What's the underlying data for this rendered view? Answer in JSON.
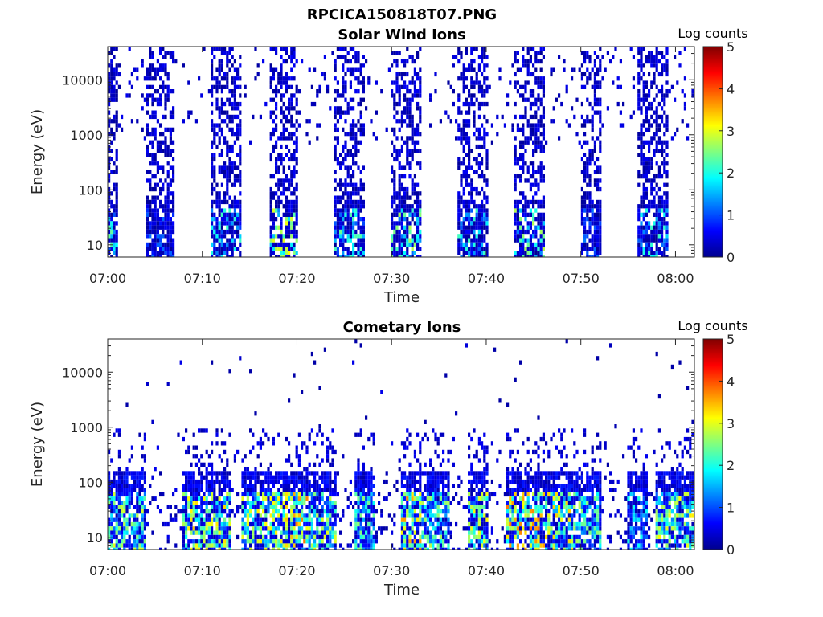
{
  "figure": {
    "title": "RPCICA150818T07.PNG"
  },
  "chart_data": [
    {
      "type": "heatmap",
      "title": "Solar Wind Ions",
      "xlabel": "Time",
      "ylabel": "Energy (eV)",
      "xlim": [
        "07:00",
        "08:02"
      ],
      "x_ticks": [
        "07:00",
        "07:10",
        "07:20",
        "07:30",
        "07:40",
        "07:50",
        "08:00"
      ],
      "y_scale": "log",
      "ylim": [
        6,
        40000
      ],
      "y_ticks": [
        "10",
        "100",
        "1000",
        "10000"
      ],
      "y_tick_values": [
        10,
        100,
        1000,
        10000
      ],
      "colorbar": {
        "label": "Log counts",
        "range": [
          0,
          5
        ],
        "ticks": [
          "0",
          "1",
          "2",
          "3",
          "4",
          "5"
        ],
        "colormap": "jet"
      },
      "bursts": [
        {
          "start": "07:00",
          "end": "07:01",
          "max_log": 2.4
        },
        {
          "start": "07:04",
          "end": "07:07",
          "max_log": 1.2
        },
        {
          "start": "07:11",
          "end": "07:14",
          "max_log": 2.2
        },
        {
          "start": "07:17",
          "end": "07:20",
          "max_log": 3.2
        },
        {
          "start": "07:24",
          "end": "07:27",
          "max_log": 2.4
        },
        {
          "start": "07:30",
          "end": "07:33",
          "max_log": 2.8
        },
        {
          "start": "07:37",
          "end": "07:40",
          "max_log": 2.2
        },
        {
          "start": "07:43",
          "end": "07:46",
          "max_log": 2.8
        },
        {
          "start": "07:50",
          "end": "07:52",
          "max_log": 1.3
        },
        {
          "start": "07:56",
          "end": "07:59",
          "max_log": 2.2
        }
      ]
    },
    {
      "type": "heatmap",
      "title": "Cometary Ions",
      "xlabel": "Time",
      "ylabel": "Energy (eV)",
      "xlim": [
        "07:00",
        "08:02"
      ],
      "x_ticks": [
        "07:00",
        "07:10",
        "07:20",
        "07:30",
        "07:40",
        "07:50",
        "08:00"
      ],
      "y_scale": "log",
      "ylim": [
        6,
        40000
      ],
      "y_ticks": [
        "10",
        "100",
        "1000",
        "10000"
      ],
      "y_tick_values": [
        10,
        100,
        1000,
        10000
      ],
      "colorbar": {
        "label": "Log counts",
        "range": [
          0,
          5
        ],
        "ticks": [
          "0",
          "1",
          "2",
          "3",
          "4",
          "5"
        ],
        "colormap": "jet"
      },
      "bursts": [
        {
          "start": "07:00",
          "end": "07:04",
          "max_log": 3.0
        },
        {
          "start": "07:08",
          "end": "07:13",
          "max_log": 3.4
        },
        {
          "start": "07:14",
          "end": "07:18",
          "max_log": 3.2
        },
        {
          "start": "07:18",
          "end": "07:21",
          "max_log": 3.8
        },
        {
          "start": "07:21",
          "end": "07:24",
          "max_log": 3.0
        },
        {
          "start": "07:26",
          "end": "07:28",
          "max_log": 2.6
        },
        {
          "start": "07:31",
          "end": "07:33",
          "max_log": 3.8
        },
        {
          "start": "07:33",
          "end": "07:36",
          "max_log": 2.8
        },
        {
          "start": "07:38",
          "end": "07:40",
          "max_log": 3.2
        },
        {
          "start": "07:42",
          "end": "07:46",
          "max_log": 3.8
        },
        {
          "start": "07:46",
          "end": "07:50",
          "max_log": 3.4
        },
        {
          "start": "07:50",
          "end": "07:52",
          "max_log": 2.6
        },
        {
          "start": "07:55",
          "end": "07:57",
          "max_log": 2.0
        },
        {
          "start": "07:58",
          "end": "08:02",
          "max_log": 3.2
        }
      ]
    }
  ]
}
